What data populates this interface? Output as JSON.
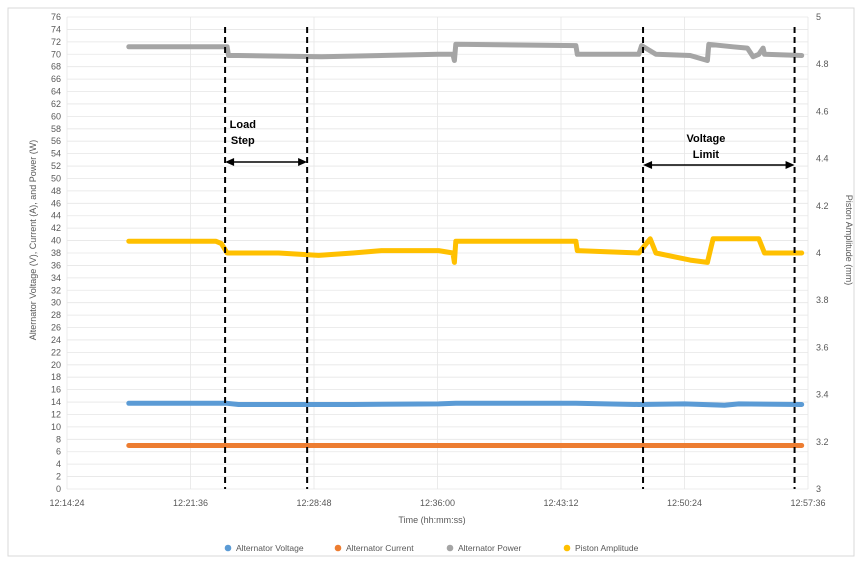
{
  "chart_data": {
    "type": "line",
    "title": "",
    "xlabel": "Time (hh:mm:ss)",
    "ylabel": "Alternator Voltage (V), Current (A), and Power (W)",
    "y2label": "Piston Amplitude (mm)",
    "xlim": [
      0,
      2592
    ],
    "x_ticks": [
      "12:14:24",
      "12:21:36",
      "12:28:48",
      "12:36:00",
      "12:43:12",
      "12:50:24",
      "12:57:36"
    ],
    "ylim": [
      0,
      76
    ],
    "y_step": 2,
    "y2lim": [
      3,
      5
    ],
    "y2_ticks": [
      "3",
      "3.2",
      "3.4",
      "3.6",
      "3.8",
      "4",
      "4.2",
      "4.4",
      "4.6",
      "4.8",
      "5"
    ],
    "grid": true,
    "legend_position": "bottom",
    "series": [
      {
        "name": "Alternator Voltage",
        "color": "#5B9BD5",
        "axis": "left",
        "x": [
          216,
          560,
          600,
          1000,
          1300,
          1360,
          1780,
          2000,
          2160,
          2300,
          2350,
          2570
        ],
        "values": [
          13.8,
          13.8,
          13.6,
          13.6,
          13.7,
          13.8,
          13.8,
          13.6,
          13.7,
          13.5,
          13.7,
          13.6
        ]
      },
      {
        "name": "Alternator Current",
        "color": "#ED7D31",
        "axis": "left",
        "x": [
          216,
          2570
        ],
        "values": [
          7.0,
          7.0
        ]
      },
      {
        "name": "Alternator Power",
        "color": "#A5A5A5",
        "axis": "left",
        "x": [
          216,
          560,
          565,
          600,
          890,
          1300,
          1350,
          1355,
          1360,
          1780,
          1785,
          2000,
          2010,
          2060,
          2180,
          2240,
          2245,
          2330,
          2380,
          2400,
          2420,
          2435,
          2440,
          2570
        ],
        "values": [
          71.2,
          71.2,
          69.8,
          69.8,
          69.6,
          70.0,
          70.0,
          69.0,
          71.6,
          71.4,
          70.0,
          70.0,
          71.4,
          70.0,
          69.8,
          69.0,
          71.6,
          71.2,
          71.0,
          69.6,
          70.0,
          71.0,
          70.0,
          69.8
        ]
      },
      {
        "name": "Piston Amplitude",
        "color": "#FFC000",
        "axis": "right",
        "x": [
          216,
          520,
          540,
          560,
          740,
          880,
          1000,
          1100,
          1300,
          1350,
          1355,
          1360,
          1780,
          1785,
          2000,
          2040,
          2060,
          2180,
          2240,
          2260,
          2265,
          2420,
          2440,
          2570
        ],
        "values": [
          4.05,
          4.05,
          4.04,
          4.0,
          4.0,
          3.99,
          4.0,
          4.01,
          4.01,
          4.0,
          3.96,
          4.05,
          4.05,
          4.01,
          4.0,
          4.06,
          4.0,
          3.97,
          3.96,
          4.06,
          4.06,
          4.06,
          4.0,
          4.0
        ]
      }
    ],
    "annotations": [
      {
        "text": "Load",
        "x": 615
      },
      {
        "text": "Step",
        "x": 615
      },
      {
        "text": "Voltage",
        "x": 2235
      },
      {
        "text": "Limit",
        "x": 2235
      }
    ],
    "vlines": [
      553,
      840,
      2015,
      2545
    ],
    "arrows": [
      [
        553,
        840
      ],
      [
        2015,
        2545
      ]
    ]
  }
}
